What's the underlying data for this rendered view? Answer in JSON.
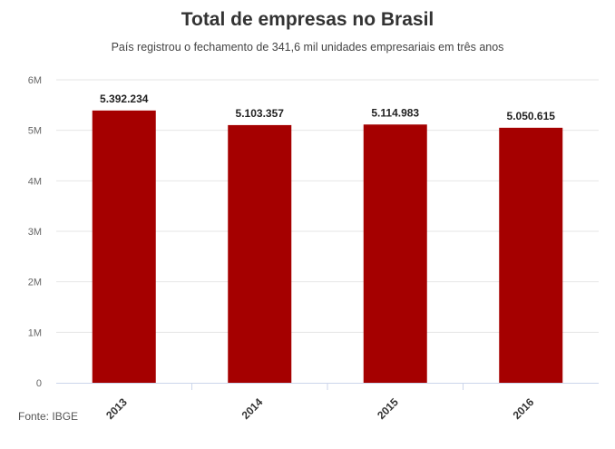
{
  "chart_data": {
    "type": "bar",
    "title": "Total de empresas no Brasil",
    "subtitle": "País registrou o fechamento de 341,6 mil unidades empresariais em três anos",
    "categories": [
      "2013",
      "2014",
      "2015",
      "2016"
    ],
    "values": [
      5392234,
      5103357,
      5114983,
      5050615
    ],
    "data_labels": [
      "5.392.234",
      "5.103.357",
      "5.114.983",
      "5.050.615"
    ],
    "ylim": [
      0,
      6000000
    ],
    "y_ticks": [
      {
        "value": 0,
        "label": "0"
      },
      {
        "value": 1000000,
        "label": "1M"
      },
      {
        "value": 2000000,
        "label": "2M"
      },
      {
        "value": 3000000,
        "label": "3M"
      },
      {
        "value": 4000000,
        "label": "4M"
      },
      {
        "value": 5000000,
        "label": "5M"
      },
      {
        "value": 6000000,
        "label": "6M"
      }
    ],
    "xlabel": "",
    "ylabel": "",
    "grid": true,
    "bar_color": "#a50000",
    "source": "Fonte: IBGE"
  }
}
